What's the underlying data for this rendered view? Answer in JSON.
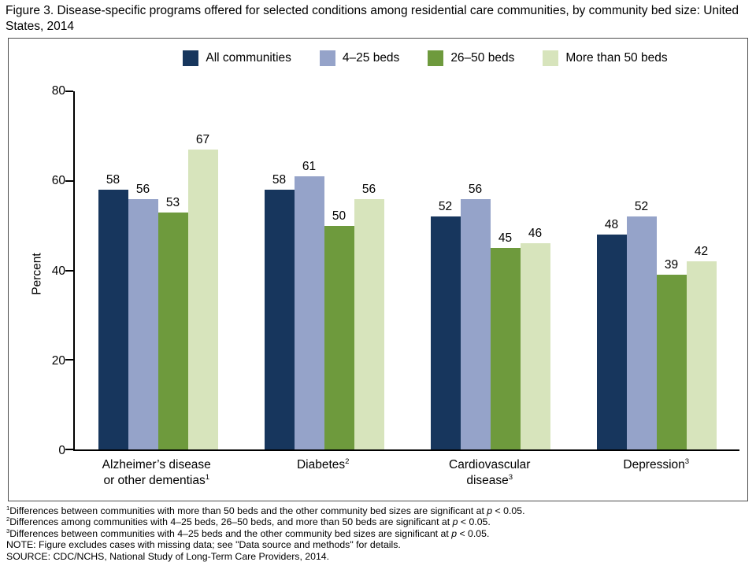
{
  "title": "Figure 3. Disease-specific programs offered for selected conditions among residential care communities, by community bed size: United States, 2014",
  "chart_data": {
    "type": "bar",
    "title": "Disease-specific programs offered for selected conditions among residential care communities, by community bed size: United States, 2014",
    "xlabel": "",
    "ylabel": "Percent",
    "ylim": [
      0,
      80
    ],
    "yticks": [
      0,
      20,
      40,
      60,
      80
    ],
    "grid": false,
    "legend_position": "top",
    "categories": [
      {
        "lines": [
          "Alzheimer’s disease",
          "or other dementias"
        ],
        "sup": "1"
      },
      {
        "lines": [
          "Diabetes"
        ],
        "sup": "2"
      },
      {
        "lines": [
          "Cardiovascular",
          "disease"
        ],
        "sup": "3"
      },
      {
        "lines": [
          "Depression"
        ],
        "sup": "3"
      }
    ],
    "series": [
      {
        "name": "All communities",
        "color": "#17365d",
        "values": [
          58,
          58,
          52,
          48
        ]
      },
      {
        "name": "4–25 beds",
        "color": "#95a3c9",
        "values": [
          56,
          61,
          56,
          52
        ]
      },
      {
        "name": "26–50 beds",
        "color": "#6e9a3d",
        "values": [
          53,
          50,
          45,
          39
        ]
      },
      {
        "name": "More than 50 beds",
        "color": "#d7e4bc",
        "values": [
          67,
          56,
          46,
          42
        ]
      }
    ]
  },
  "footnotes": [
    {
      "sup": "1",
      "text": "Differences between communities with more than 50 beds and the other community bed sizes are significant at p < 0.05."
    },
    {
      "sup": "2",
      "text": "Differences among communities with 4–25 beds, 26–50 beds, and more than 50 beds are significant at p < 0.05."
    },
    {
      "sup": "3",
      "text": "Differences between communities with 4–25 beds and the other community bed sizes are significant at p < 0.05."
    },
    {
      "sup": "",
      "text": "NOTE: Figure excludes cases with missing data; see \"Data source and methods\" for details."
    },
    {
      "sup": "",
      "text": "SOURCE: CDC/NCHS, National Study of Long-Term Care Providers, 2014."
    }
  ]
}
